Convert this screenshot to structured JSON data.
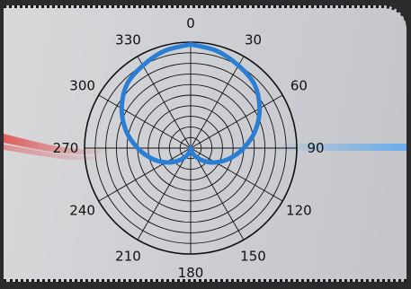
{
  "chart_data": {
    "type": "polar-line",
    "title": "",
    "angle_ticks": [
      "0",
      "30",
      "60",
      "90",
      "120",
      "150",
      "180",
      "210",
      "240",
      "270",
      "300",
      "330"
    ],
    "angle_tick_values_deg": [
      0,
      30,
      60,
      90,
      120,
      150,
      180,
      210,
      240,
      270,
      300,
      330
    ],
    "radial_rings": 10,
    "radial_range": [
      0,
      1
    ],
    "radial_labels_shown": false,
    "grid": true,
    "series": [
      {
        "color": "#2a7fd4",
        "theta_deg": [
          0,
          15,
          30,
          45,
          60,
          75,
          90,
          105,
          120,
          135,
          150,
          165,
          180,
          195,
          210,
          225,
          240,
          255,
          270,
          285,
          300,
          315,
          330,
          345,
          360
        ],
        "r": [
          0.98,
          0.95,
          0.9,
          0.85,
          0.75,
          0.63,
          0.5,
          0.38,
          0.27,
          0.17,
          0.09,
          0.03,
          0.0,
          0.03,
          0.09,
          0.17,
          0.27,
          0.38,
          0.5,
          0.63,
          0.75,
          0.85,
          0.9,
          0.95,
          0.98
        ]
      }
    ]
  },
  "colors": {
    "axis": "#111111",
    "series": "#2a7fd4",
    "glow_left": "#e04848",
    "glow_right": "#5aa8f0"
  }
}
